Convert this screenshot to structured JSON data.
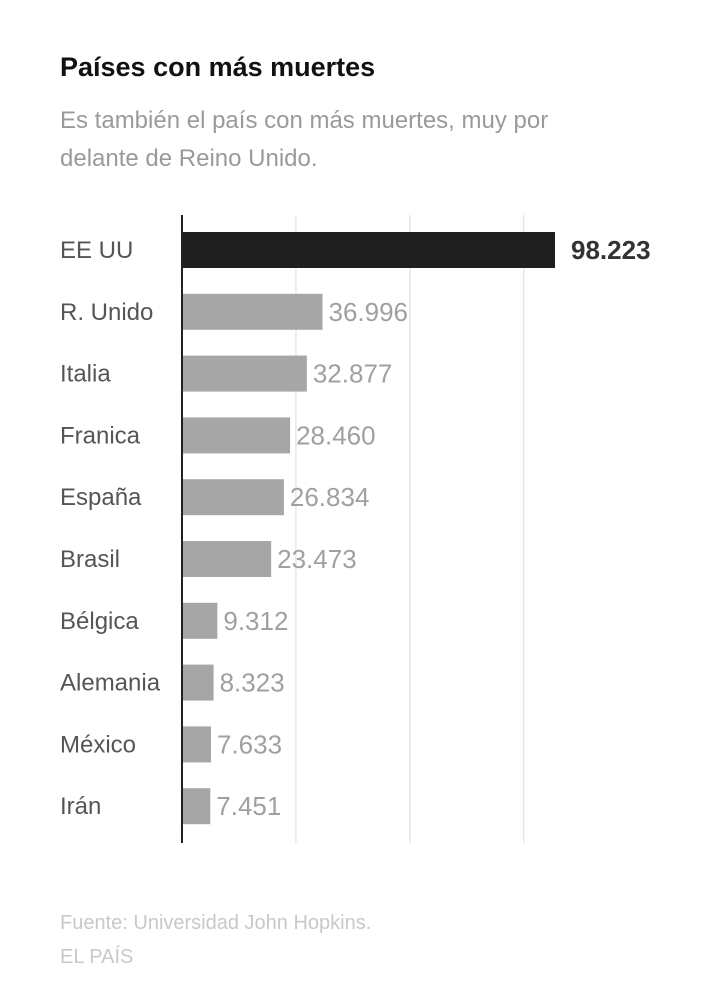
{
  "header": {
    "title": "Países con más muertes",
    "subtitle": "Es también el país con más muertes, muy por delante de Reino Unido."
  },
  "footer": {
    "source": "Fuente: Universidad John Hopkins.",
    "brand": "EL PAÍS"
  },
  "colors": {
    "highlight": "#1f1f1f",
    "bar": "#a6a6a6",
    "grid": "#dddddd",
    "axis": "#222222"
  },
  "chart_data": {
    "type": "bar",
    "orientation": "horizontal",
    "categories": [
      "EE UU",
      "R. Unido",
      "Italia",
      "Franica",
      "España",
      "Brasil",
      "Bélgica",
      "Alemania",
      "México",
      "Irán"
    ],
    "values": [
      98223,
      36996,
      32877,
      28460,
      26834,
      23473,
      9312,
      8323,
      7633,
      7451
    ],
    "value_labels": [
      "98.223",
      "36.996",
      "32.877",
      "28.460",
      "26.834",
      "23.473",
      "9.312",
      "8.323",
      "7.633",
      "7.451"
    ],
    "highlighted_category": "EE UU",
    "xlim": [
      0,
      120000
    ],
    "gridlines": [
      0,
      30000,
      60000,
      90000
    ],
    "grid": true
  }
}
